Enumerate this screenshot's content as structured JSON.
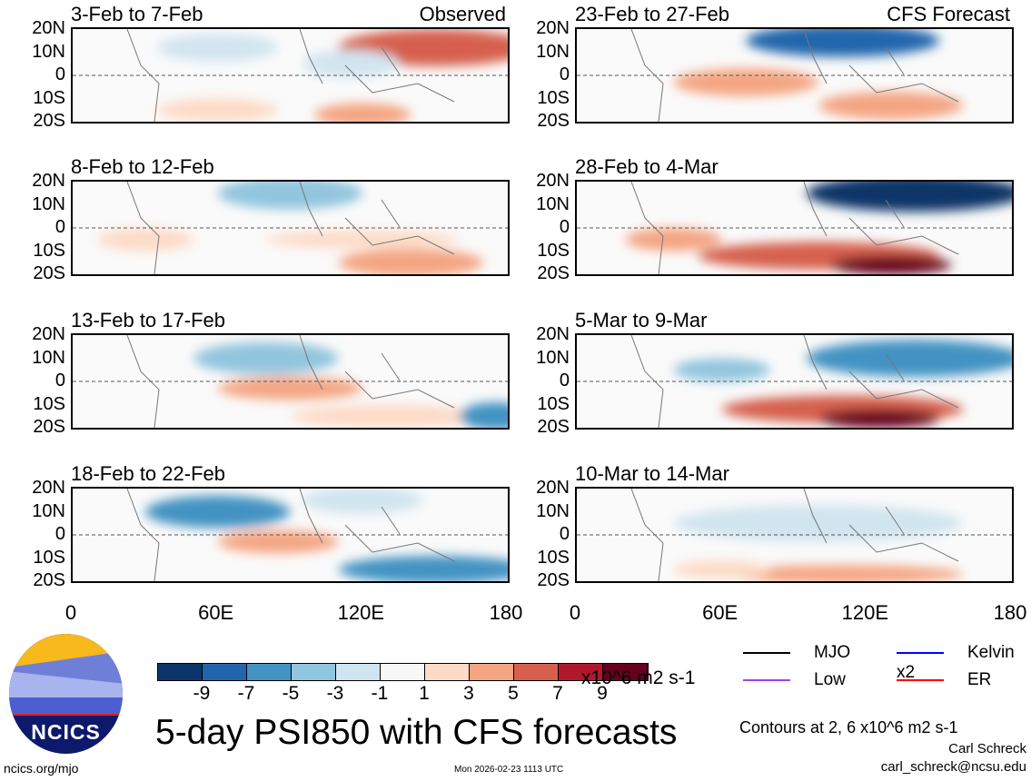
{
  "panels_left": [
    {
      "title": "3-Feb to 7-Feb",
      "tag": "Observed"
    },
    {
      "title": "8-Feb to 12-Feb",
      "tag": ""
    },
    {
      "title": "13-Feb to 17-Feb",
      "tag": ""
    },
    {
      "title": "18-Feb to 22-Feb",
      "tag": ""
    }
  ],
  "panels_right": [
    {
      "title": "23-Feb to 27-Feb",
      "tag": "CFS Forecast"
    },
    {
      "title": "28-Feb to 4-Mar",
      "tag": ""
    },
    {
      "title": "5-Mar to 9-Mar",
      "tag": ""
    },
    {
      "title": "10-Mar to 14-Mar",
      "tag": ""
    }
  ],
  "lat_labels": [
    "20N",
    "10N",
    "0",
    "10S",
    "20S"
  ],
  "lon_labels": [
    "0",
    "60E",
    "120E",
    "180"
  ],
  "colorbar": {
    "colors": [
      "#0b3568",
      "#2166ac",
      "#4393c3",
      "#92c5de",
      "#d1e5f0",
      "#f7f7f7",
      "#fddbc7",
      "#f4a582",
      "#d6604d",
      "#b2182b",
      "#67001f"
    ],
    "labels": [
      "-9",
      "-7",
      "-5",
      "-3",
      "-1",
      "1",
      "3",
      "5",
      "7",
      "9"
    ],
    "units": "x10^6 m2 s-1"
  },
  "title": "5-day PSI850 with CFS forecasts",
  "logo_text": "NCICS",
  "url": "ncics.org/mjo",
  "timestamp": "Mon 2026-02-23 1113 UTC",
  "legend": [
    {
      "label": "MJO",
      "color": "#000000"
    },
    {
      "label": "Kelvin x2",
      "color": "#0000ff"
    },
    {
      "label": "Low",
      "color": "#a040f0"
    },
    {
      "label": "ER",
      "color": "#ff0000"
    }
  ],
  "contour_note": "Contours at 2, 6 x10^6 m2 s-1",
  "author": "Carl Schreck",
  "email": "carl_schreck@ncsu.edu"
}
